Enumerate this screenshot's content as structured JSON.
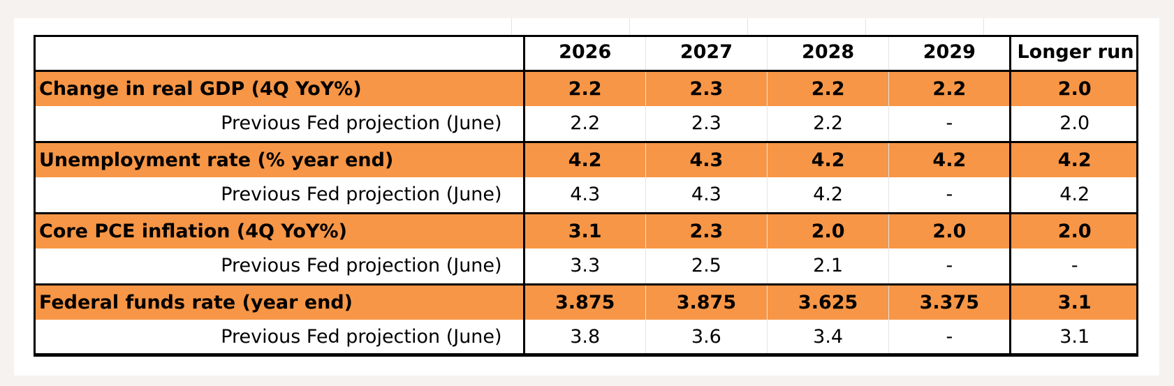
{
  "chart_data": {
    "type": "table",
    "columns": [
      "",
      "2026",
      "2027",
      "2028",
      "2029",
      "Longer run"
    ],
    "rows": [
      {
        "label": "Change in real GDP (4Q YoY%)",
        "kind": "main",
        "values": [
          "2.2",
          "2.3",
          "2.2",
          "2.2",
          "2.0"
        ]
      },
      {
        "label": "Previous Fed projection (June)",
        "kind": "prev",
        "values": [
          "2.2",
          "2.3",
          "2.2",
          "-",
          "2.0"
        ]
      },
      {
        "label": "Unemployment rate  (% year end)",
        "kind": "main",
        "values": [
          "4.2",
          "4.3",
          "4.2",
          "4.2",
          "4.2"
        ]
      },
      {
        "label": "Previous Fed projection (June)",
        "kind": "prev",
        "values": [
          "4.3",
          "4.3",
          "4.2",
          "-",
          "4.2"
        ]
      },
      {
        "label": "Core PCE inflation (4Q YoY%)",
        "kind": "main",
        "values": [
          "3.1",
          "2.3",
          "2.0",
          "2.0",
          "2.0"
        ]
      },
      {
        "label": "Previous Fed projection (June)",
        "kind": "prev",
        "values": [
          "3.3",
          "2.5",
          "2.1",
          "-",
          "-"
        ]
      },
      {
        "label": "Federal funds rate (year end)",
        "kind": "main",
        "values": [
          "3.875",
          "3.875",
          "3.625",
          "3.375",
          "3.1"
        ]
      },
      {
        "label": "Previous Fed projection (June)",
        "kind": "prev",
        "values": [
          "3.8",
          "3.6",
          "3.4",
          "-",
          "3.1"
        ]
      }
    ]
  },
  "colors": {
    "highlight_row": "#f79646",
    "background": "#f5f2ef",
    "border": "#000000"
  }
}
